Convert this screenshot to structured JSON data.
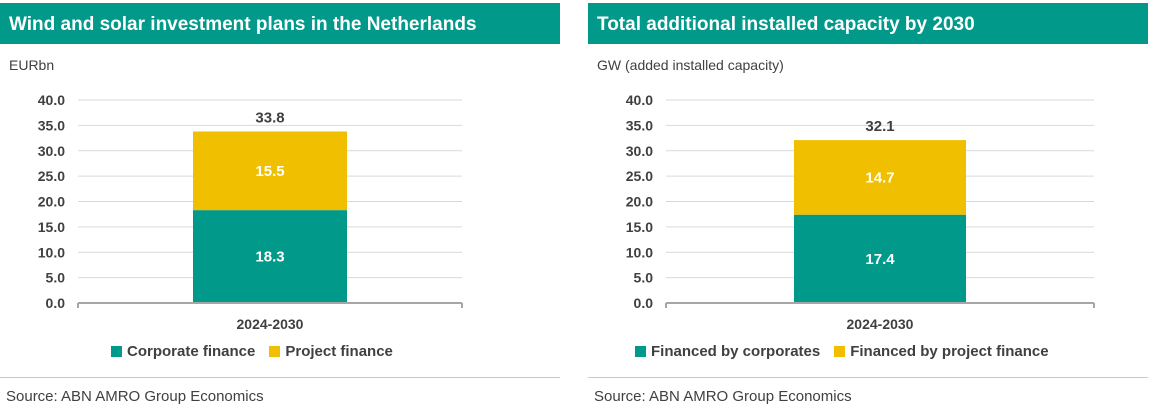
{
  "colors": {
    "title_bg": "#00998a",
    "series_bottom": "#00998a",
    "series_top": "#f0c000",
    "axis": "#a6a6a6",
    "grid": "#d9d9d9"
  },
  "panels": [
    {
      "title": "Wind and solar investment plans in the Netherlands",
      "unit": "EURbn",
      "source": "Source: ABN AMRO Group Economics",
      "legend": [
        "Corporate finance",
        "Project finance"
      ]
    },
    {
      "title": "Total additional installed capacity by 2030",
      "unit": "GW (added installed capacity)",
      "source": "Source: ABN AMRO Group Economics",
      "legend": [
        "Financed by corporates",
        "Financed by project finance"
      ]
    }
  ],
  "chart_data": [
    {
      "type": "bar",
      "stacked": true,
      "title": "Wind and solar investment plans in the Netherlands",
      "ylabel": "EURbn",
      "categories": [
        "2024-2030"
      ],
      "ylim": [
        0,
        40
      ],
      "yticks": [
        "0.0",
        "5.0",
        "10.0",
        "15.0",
        "20.0",
        "25.0",
        "30.0",
        "35.0",
        "40.0"
      ],
      "series": [
        {
          "name": "Corporate finance",
          "values": [
            18.3
          ],
          "labels": [
            "18.3"
          ],
          "color": "#00998a"
        },
        {
          "name": "Project finance",
          "values": [
            15.5
          ],
          "labels": [
            "15.5"
          ],
          "color": "#f0c000"
        }
      ],
      "totals": [
        "33.8"
      ],
      "grid": true,
      "legend_position": "bottom"
    },
    {
      "type": "bar",
      "stacked": true,
      "title": "Total additional installed capacity by 2030",
      "ylabel": "GW (added installed capacity)",
      "categories": [
        "2024-2030"
      ],
      "ylim": [
        0,
        40
      ],
      "yticks": [
        "0.0",
        "5.0",
        "10.0",
        "15.0",
        "20.0",
        "25.0",
        "30.0",
        "35.0",
        "40.0"
      ],
      "series": [
        {
          "name": "Financed by corporates",
          "values": [
            17.4
          ],
          "labels": [
            "17.4"
          ],
          "color": "#00998a"
        },
        {
          "name": "Financed by project finance",
          "values": [
            14.7
          ],
          "labels": [
            "14.7"
          ],
          "color": "#f0c000"
        }
      ],
      "totals": [
        "32.1"
      ],
      "grid": true,
      "legend_position": "bottom"
    }
  ]
}
